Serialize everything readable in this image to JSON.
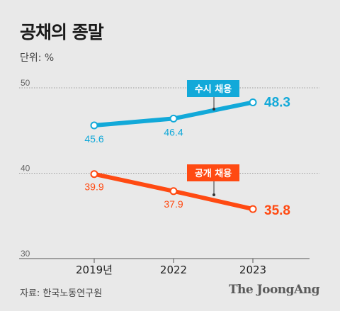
{
  "title": "공채의 종말",
  "unit_label": "단위: %",
  "source": "자료: 한국노동연구원",
  "brand": "The JoongAng",
  "colors": {
    "series_1": "#12a9d9",
    "series_2": "#ff4a12",
    "background": "#e9e9e9"
  },
  "chart_data": {
    "type": "line",
    "categories": [
      "2019년",
      "2022",
      "2023"
    ],
    "ylim": [
      30,
      50
    ],
    "yticks": [
      "30",
      "40",
      "50"
    ],
    "grid": true,
    "series": [
      {
        "name": "수시 채용",
        "values": [
          45.6,
          46.4,
          48.3
        ],
        "labels": [
          "45.6",
          "46.4",
          "48.3"
        ]
      },
      {
        "name": "공개 채용",
        "values": [
          39.9,
          37.9,
          35.8
        ],
        "labels": [
          "39.9",
          "37.9",
          "35.8"
        ]
      }
    ]
  }
}
